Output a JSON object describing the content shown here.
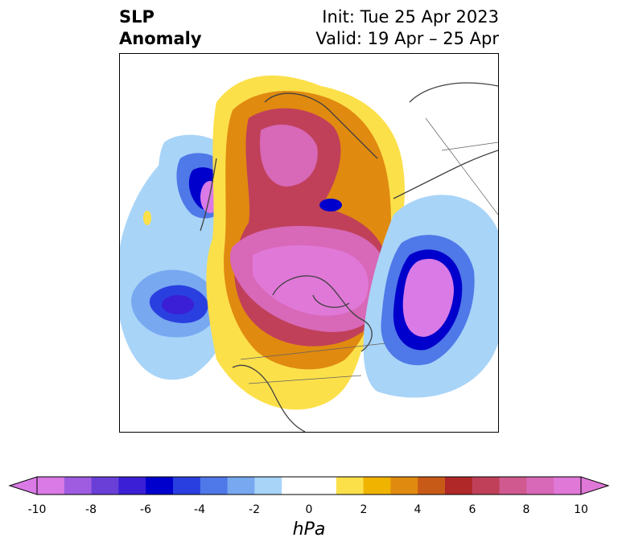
{
  "title": {
    "left_line1": "SLP",
    "left_line2": "Anomaly",
    "right_line1": "Init: Tue 25 Apr 2023",
    "right_line2": "Valid: 19 Apr – 25 Apr"
  },
  "colorbar": {
    "unit": "hPa",
    "ticks": [
      "-10",
      "-8",
      "-6",
      "-4",
      "-2",
      "0",
      "2",
      "4",
      "6",
      "8",
      "10"
    ],
    "colors": [
      "#d97ae6",
      "#9f5ce0",
      "#6a3fd8",
      "#3a1fd6",
      "#0000cc",
      "#2a3fe0",
      "#4f78e8",
      "#78a8f0",
      "#a8d4f8",
      "#ffffff",
      "#fce04a",
      "#f0b400",
      "#e08a10",
      "#c85a18",
      "#b02828",
      "#c0405a",
      "#d05a90",
      "#d868b8",
      "#e078d8"
    ],
    "extend": "both"
  },
  "map": {
    "projection": "polar-stereographic",
    "features": [
      "coastlines",
      "country-borders",
      "state-borders"
    ]
  }
}
